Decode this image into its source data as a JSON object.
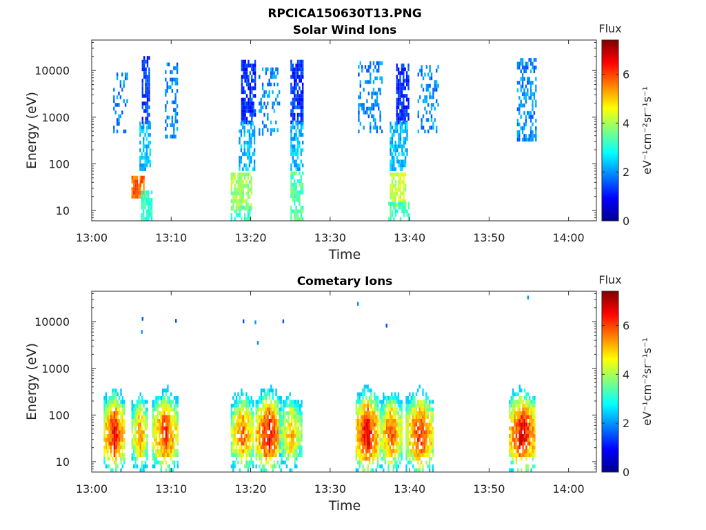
{
  "figure_title": "RPCICA150630T13.PNG",
  "colorbar": {
    "title": "Flux",
    "units_label": "eV⁻¹cm⁻²sr⁻¹s⁻¹",
    "range": [
      0,
      7.4
    ],
    "ticks": [
      "0",
      "2",
      "4",
      "6"
    ],
    "colormap": "jet"
  },
  "chart_data": [
    {
      "type": "heatmap",
      "title": "Solar Wind Ions",
      "xlabel": "Time",
      "ylabel": "Energy (eV)",
      "x_unit": "minutes after 13:00",
      "xlim": [
        0,
        63.5
      ],
      "x_ticks": [
        {
          "value": 0,
          "label": "13:00"
        },
        {
          "value": 10,
          "label": "13:10"
        },
        {
          "value": 20,
          "label": "13:20"
        },
        {
          "value": 30,
          "label": "13:30"
        },
        {
          "value": 40,
          "label": "13:40"
        },
        {
          "value": 50,
          "label": "13:50"
        },
        {
          "value": 60,
          "label": "14:00"
        }
      ],
      "y_scale": "log",
      "ylim": [
        6,
        45000
      ],
      "y_ticks": [
        {
          "value": 10,
          "label": "10"
        },
        {
          "value": 100,
          "label": "100"
        },
        {
          "value": 1000,
          "label": "1000"
        },
        {
          "value": 10000,
          "label": "10000"
        }
      ],
      "clusters": [
        {
          "t": [
            6.3,
            7.3
          ],
          "e": [
            700,
            17000
          ],
          "flux": 1.4,
          "density": 0.7,
          "seed": 11
        },
        {
          "t": [
            6.0,
            7.3
          ],
          "e": [
            70,
            700
          ],
          "flux": 2.3,
          "density": 0.6,
          "seed": 12
        },
        {
          "t": [
            5.0,
            6.5
          ],
          "e": [
            18,
            50
          ],
          "flux": 5.7,
          "density": 0.9,
          "seed": 13
        },
        {
          "t": [
            6.2,
            7.6
          ],
          "e": [
            6,
            25
          ],
          "flux": 3.2,
          "density": 0.7,
          "seed": 14
        },
        {
          "t": [
            2.7,
            4.5
          ],
          "e": [
            450,
            9000
          ],
          "flux": 1.9,
          "density": 0.3,
          "seed": 15
        },
        {
          "t": [
            9.2,
            10.8
          ],
          "e": [
            350,
            14000
          ],
          "flux": 1.9,
          "density": 0.35,
          "seed": 16
        },
        {
          "t": [
            18.8,
            20.5
          ],
          "e": [
            700,
            15000
          ],
          "flux": 1.3,
          "density": 0.75,
          "seed": 17
        },
        {
          "t": [
            18.5,
            20.5
          ],
          "e": [
            70,
            700
          ],
          "flux": 2.3,
          "density": 0.6,
          "seed": 18
        },
        {
          "t": [
            17.5,
            20.0
          ],
          "e": [
            10,
            60
          ],
          "flux": 3.9,
          "density": 0.75,
          "seed": 19
        },
        {
          "t": [
            17.5,
            19.8
          ],
          "e": [
            6,
            12
          ],
          "flux": 3.2,
          "density": 0.6,
          "seed": 20
        },
        {
          "t": [
            21.0,
            23.5
          ],
          "e": [
            400,
            11000
          ],
          "flux": 2.0,
          "density": 0.3,
          "seed": 21
        },
        {
          "t": [
            25.0,
            26.5
          ],
          "e": [
            700,
            15000
          ],
          "flux": 1.3,
          "density": 0.75,
          "seed": 22
        },
        {
          "t": [
            25.0,
            26.5
          ],
          "e": [
            70,
            700
          ],
          "flux": 2.3,
          "density": 0.6,
          "seed": 23
        },
        {
          "t": [
            25.0,
            26.5
          ],
          "e": [
            6,
            60
          ],
          "flux": 3.4,
          "density": 0.7,
          "seed": 24
        },
        {
          "t": [
            33.5,
            36.5
          ],
          "e": [
            450,
            14000
          ],
          "flux": 1.9,
          "density": 0.35,
          "seed": 25
        },
        {
          "t": [
            38.3,
            39.8
          ],
          "e": [
            700,
            14000
          ],
          "flux": 1.3,
          "density": 0.75,
          "seed": 26
        },
        {
          "t": [
            37.5,
            39.7
          ],
          "e": [
            70,
            700
          ],
          "flux": 2.3,
          "density": 0.6,
          "seed": 27
        },
        {
          "t": [
            37.5,
            39.5
          ],
          "e": [
            12,
            60
          ],
          "flux": 4.2,
          "density": 0.75,
          "seed": 28
        },
        {
          "t": [
            37.3,
            39.8
          ],
          "e": [
            6,
            15
          ],
          "flux": 3.2,
          "density": 0.6,
          "seed": 29
        },
        {
          "t": [
            41.0,
            43.5
          ],
          "e": [
            450,
            12000
          ],
          "flux": 1.9,
          "density": 0.3,
          "seed": 30
        },
        {
          "t": [
            53.5,
            55.8
          ],
          "e": [
            300,
            17000
          ],
          "flux": 1.9,
          "density": 0.45,
          "seed": 31
        }
      ]
    },
    {
      "type": "heatmap",
      "title": "Cometary Ions",
      "xlabel": "Time",
      "ylabel": "Energy (eV)",
      "x_unit": "minutes after 13:00",
      "xlim": [
        0,
        63.5
      ],
      "x_ticks": [
        {
          "value": 0,
          "label": "13:00"
        },
        {
          "value": 10,
          "label": "13:10"
        },
        {
          "value": 20,
          "label": "13:20"
        },
        {
          "value": 30,
          "label": "13:30"
        },
        {
          "value": 40,
          "label": "13:40"
        },
        {
          "value": 50,
          "label": "13:50"
        },
        {
          "value": 60,
          "label": "14:00"
        }
      ],
      "y_scale": "log",
      "ylim": [
        6,
        45000
      ],
      "y_ticks": [
        {
          "value": 10,
          "label": "10"
        },
        {
          "value": 100,
          "label": "100"
        },
        {
          "value": 1000,
          "label": "1000"
        },
        {
          "value": 10000,
          "label": "10000"
        }
      ],
      "bursts": [
        {
          "t": [
            1.5,
            4.0
          ],
          "peak": 6.5,
          "seed": 41
        },
        {
          "t": [
            5.0,
            7.0
          ],
          "peak": 5.6,
          "seed": 42
        },
        {
          "t": [
            7.6,
            10.8
          ],
          "peak": 6.2,
          "seed": 43
        },
        {
          "t": [
            17.5,
            20.3
          ],
          "peak": 5.9,
          "seed": 44
        },
        {
          "t": [
            20.6,
            23.8
          ],
          "peak": 6.6,
          "seed": 45
        },
        {
          "t": [
            23.6,
            26.4
          ],
          "peak": 5.3,
          "seed": 46
        },
        {
          "t": [
            33.2,
            36.0
          ],
          "peak": 6.8,
          "seed": 47
        },
        {
          "t": [
            36.2,
            39.0
          ],
          "peak": 6.0,
          "seed": 48
        },
        {
          "t": [
            39.5,
            43.0
          ],
          "peak": 6.3,
          "seed": 49
        },
        {
          "t": [
            52.5,
            55.8
          ],
          "peak": 6.7,
          "seed": 50
        }
      ],
      "outliers": [
        {
          "t": 6.3,
          "e": 10500,
          "flux": 1.5
        },
        {
          "t": 6.2,
          "e": 5500,
          "flux": 2.0
        },
        {
          "t": 10.5,
          "e": 9500,
          "flux": 1.5
        },
        {
          "t": 19.0,
          "e": 9300,
          "flux": 1.5
        },
        {
          "t": 20.5,
          "e": 8800,
          "flux": 2.0
        },
        {
          "t": 20.8,
          "e": 3200,
          "flux": 2.0
        },
        {
          "t": 24.0,
          "e": 9300,
          "flux": 1.5
        },
        {
          "t": 33.4,
          "e": 22000,
          "flux": 2.0
        },
        {
          "t": 37.0,
          "e": 7500,
          "flux": 1.5
        },
        {
          "t": 54.8,
          "e": 30000,
          "flux": 2.0
        }
      ]
    }
  ]
}
